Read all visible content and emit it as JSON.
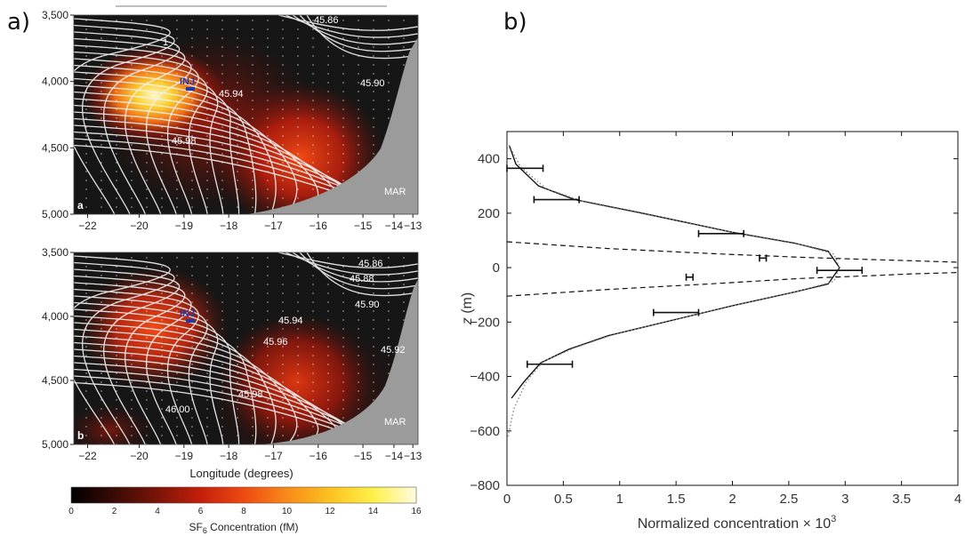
{
  "panel_labels": {
    "a": "a)",
    "b": "b)"
  },
  "chart_data": [
    {
      "type": "heatmap",
      "panel_tag": "a",
      "y_ticks": [
        "3,500",
        "4,000",
        "4,500",
        "5,000"
      ],
      "x_ticks": [
        "−22",
        "−20",
        "−19",
        "−18",
        "−17",
        "−16",
        "−15",
        "−14",
        "−13"
      ],
      "contour_labels": [
        "45.86",
        "45.94",
        "45.90",
        "45.98",
        "1"
      ],
      "annotations": {
        "inj": "INJ",
        "ridge": "MAR"
      },
      "colors": {
        "background": "#151515",
        "contour": "#f2f2f2",
        "seafloor": "#9b9b9b",
        "inj_marker": "#1f3aa8"
      }
    },
    {
      "type": "heatmap",
      "panel_tag": "b",
      "y_ticks": [
        "3,500",
        "4,000",
        "4,500",
        "5,000"
      ],
      "x_ticks": [
        "−22",
        "−20",
        "−19",
        "−18",
        "−17",
        "−16",
        "−15",
        "−14",
        "−13"
      ],
      "xlabel": "Longitude (degrees)",
      "contour_labels": [
        "45.86",
        "45.88",
        "45.90",
        "45.94",
        "45.96",
        "45.92",
        "45.98",
        "46.00"
      ],
      "annotations": {
        "inj": "INJ",
        "ridge": "MAR"
      },
      "colorbar": {
        "ticks": [
          "0",
          "2",
          "4",
          "6",
          "8",
          "10",
          "12",
          "14",
          "16"
        ],
        "label_pre": "SF",
        "label_sub": "6",
        "label_post": " Concentration (fM)",
        "colors": [
          "#000000",
          "#3a0b06",
          "#7a1408",
          "#c41f0b",
          "#ee4a12",
          "#f88a1a",
          "#fcc21f",
          "#fff04a",
          "#fffbe0"
        ]
      }
    },
    {
      "type": "line",
      "xlim": [
        0,
        4
      ],
      "ylim": [
        -800,
        500
      ],
      "x_ticks": [
        "0",
        "0.5",
        "1",
        "1.5",
        "2",
        "2.5",
        "3",
        "3.5",
        "4"
      ],
      "y_ticks": [
        "400",
        "200",
        "0",
        "−200",
        "−400",
        "−600",
        "−800"
      ],
      "xlabel_pre": "Normalized concentration × 10",
      "xlabel_exp": "3",
      "ylabel_italic": "z",
      "ylabel_rest": " (m)",
      "series": [
        {
          "style": "solid",
          "x": [
            0.02,
            0.08,
            0.28,
            0.6,
            1.2,
            2.0,
            2.55,
            2.85,
            2.95,
            2.85,
            2.55,
            2.0,
            1.4,
            0.9,
            0.55,
            0.3,
            0.15,
            0.04
          ],
          "y": [
            450,
            380,
            300,
            250,
            200,
            130,
            90,
            60,
            0,
            -60,
            -90,
            -140,
            -200,
            -250,
            -300,
            -350,
            -420,
            -480
          ]
        },
        {
          "style": "dotted",
          "x": [
            0.02,
            0.12,
            0.35,
            0.7,
            1.3,
            2.05,
            2.6,
            2.9,
            2.95,
            2.9,
            2.6,
            2.05,
            1.45,
            0.95,
            0.6,
            0.32,
            0.17,
            0.06,
            0.01
          ],
          "y": [
            450,
            370,
            290,
            240,
            190,
            125,
            85,
            50,
            0,
            -50,
            -85,
            -135,
            -195,
            -245,
            -295,
            -345,
            -420,
            -520,
            -620
          ]
        },
        {
          "style": "dashed",
          "x": [
            0.0,
            0.9,
            1.8,
            2.6,
            3.2,
            3.6,
            4.0
          ],
          "y": [
            95,
            70,
            52,
            38,
            30,
            25,
            20
          ]
        },
        {
          "style": "dashed",
          "x": [
            0.0,
            0.9,
            1.8,
            2.6,
            3.2,
            3.6,
            4.0
          ],
          "y": [
            -105,
            -80,
            -60,
            -40,
            -30,
            -23,
            -18
          ]
        }
      ],
      "error_bars": [
        {
          "x": 0.16,
          "xerr": 0.16,
          "y": 365
        },
        {
          "x": 0.44,
          "xerr": 0.2,
          "y": 250
        },
        {
          "x": 1.9,
          "xerr": 0.2,
          "y": 125
        },
        {
          "x": 2.27,
          "xerr": 0.03,
          "y": 35
        },
        {
          "x": 2.95,
          "xerr": 0.2,
          "y": -10
        },
        {
          "x": 1.62,
          "xerr": 0.03,
          "y": -35
        },
        {
          "x": 1.5,
          "xerr": 0.2,
          "y": -165
        },
        {
          "x": 0.38,
          "xerr": 0.2,
          "y": -355
        }
      ],
      "colors": {
        "line": "#111111",
        "dotted": "#888888"
      }
    }
  ]
}
